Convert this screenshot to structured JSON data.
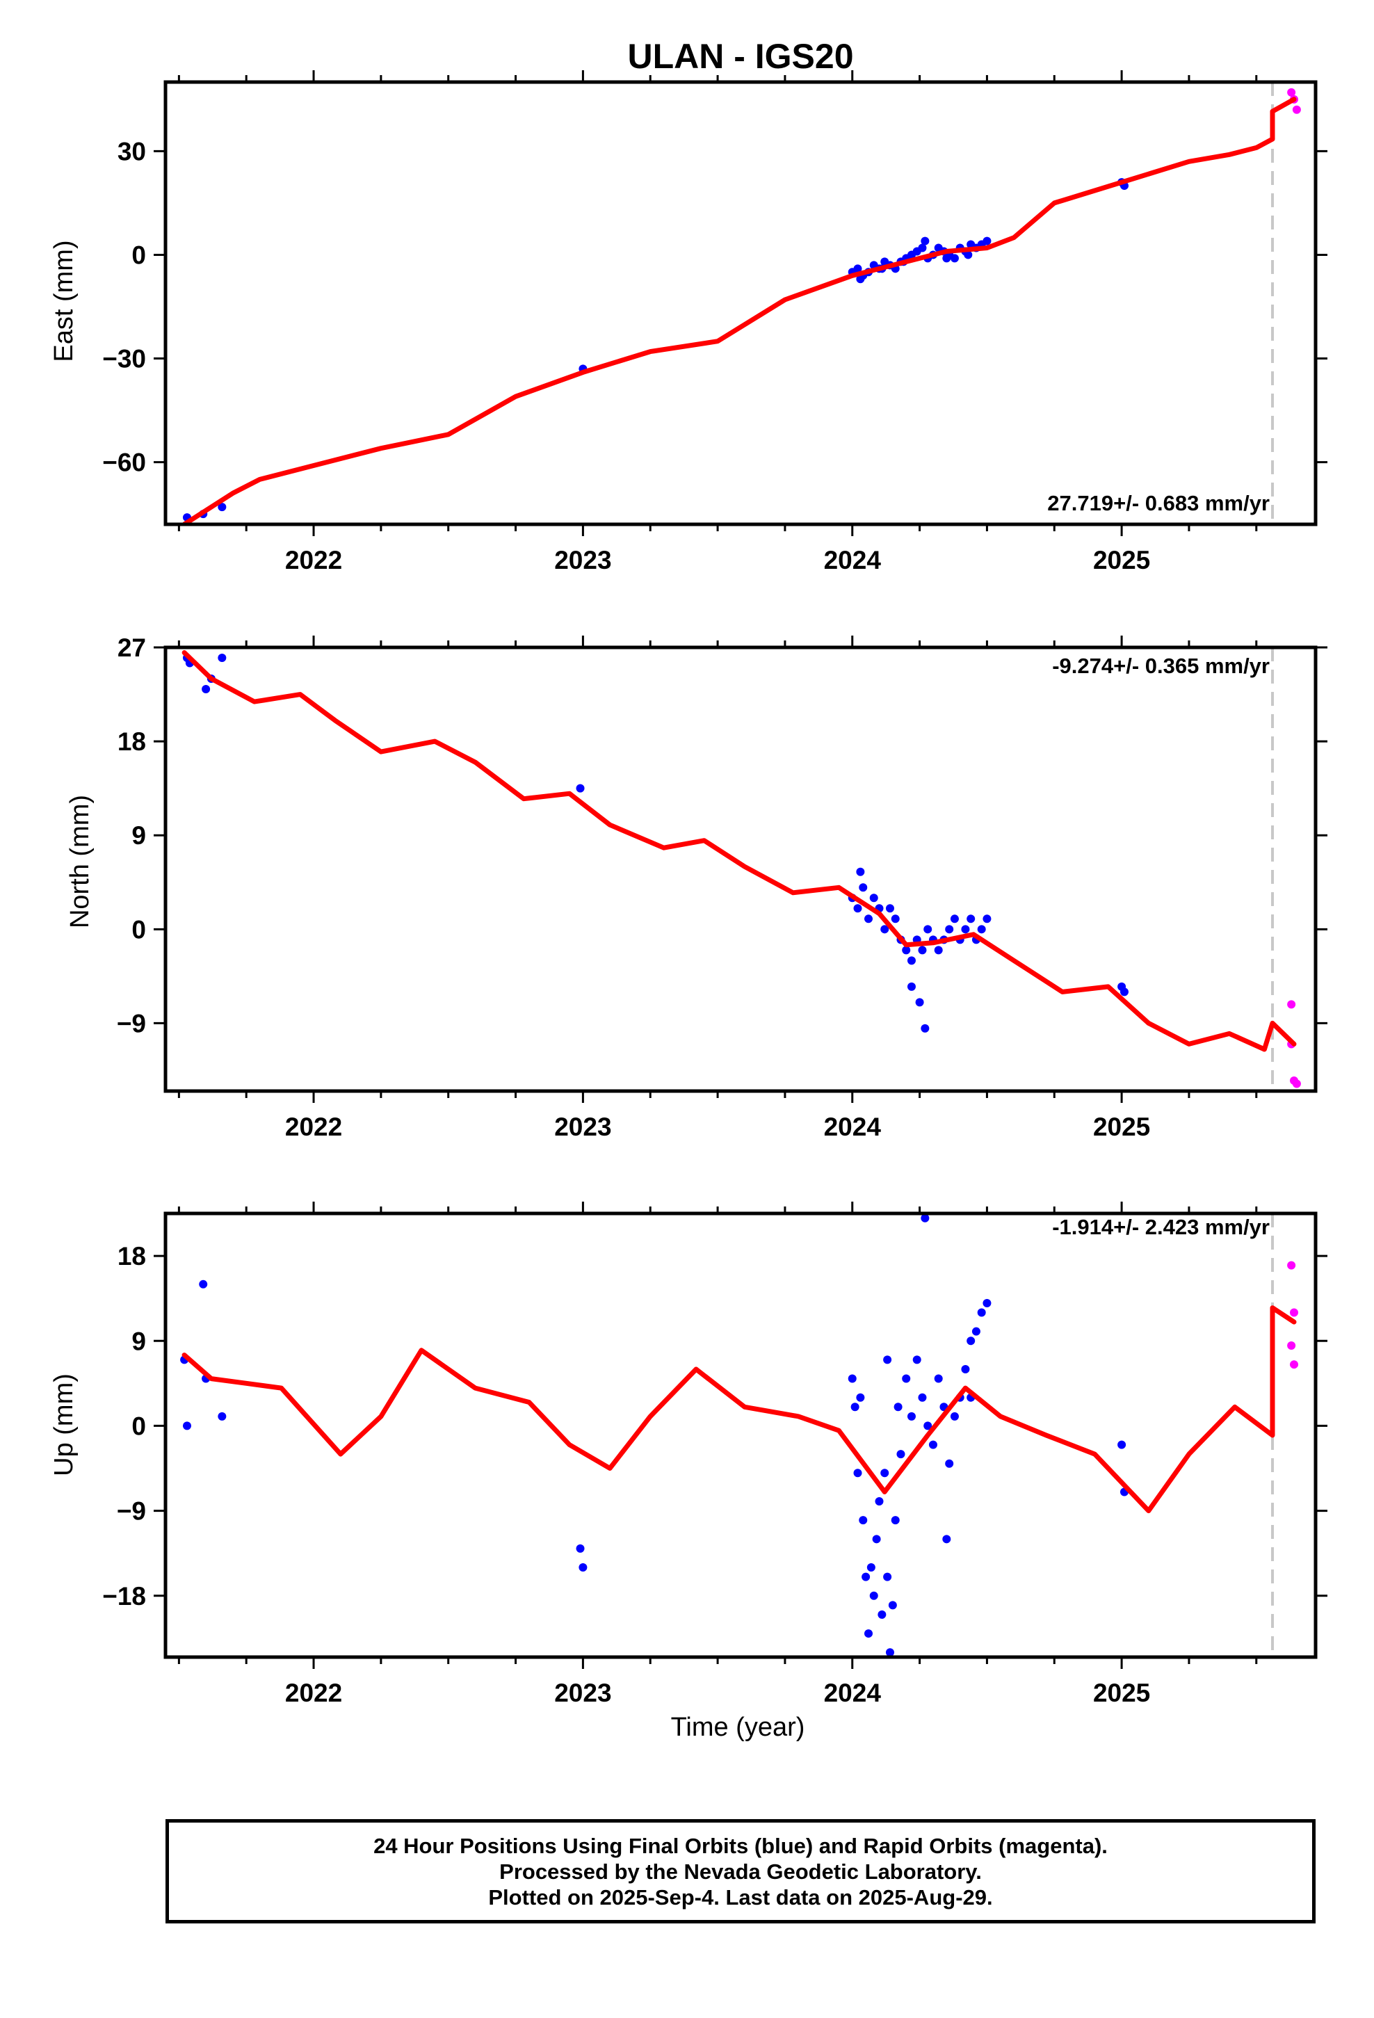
{
  "chart_data": {
    "title": "ULAN - IGS20",
    "xlabel": "Time (year)",
    "xlim": [
      2021.45,
      2025.72
    ],
    "x_ticks": [
      2022,
      2023,
      2024,
      2025
    ],
    "x_ticklabels": [
      "2022",
      "2023",
      "2024",
      "2025"
    ],
    "x_minor_tick_step": 0.25,
    "offset_epoch": 2025.56,
    "colors": {
      "final_orbits": "#0000ff",
      "rapid_orbits": "#ff00ff",
      "model": "#ff0000",
      "offset_line": "#c8c8c8"
    },
    "panels": [
      {
        "type": "scatter",
        "ylabel": "East (mm)",
        "ylim": [
          -78,
          50
        ],
        "y_ticks": [
          -60,
          -30,
          0,
          30
        ],
        "y_ticklabels": [
          "−60",
          "−30",
          "0",
          "30"
        ],
        "rate_text": "27.719+/- 0.683 mm/yr",
        "rate_position": "bottom-right",
        "model_line": {
          "x": [
            2021.52,
            2021.6,
            2021.7,
            2021.8,
            2022.0,
            2022.25,
            2022.5,
            2022.75,
            2023.0,
            2023.25,
            2023.5,
            2023.75,
            2024.0,
            2024.2,
            2024.35,
            2024.5,
            2024.6,
            2024.75,
            2025.0,
            2025.25,
            2025.4,
            2025.5,
            2025.56,
            2025.56,
            2025.64
          ],
          "y": [
            -78,
            -74,
            -69,
            -65,
            -61,
            -56,
            -52,
            -41,
            -34,
            -28,
            -25,
            -13,
            -6,
            -2,
            1,
            2,
            5,
            15,
            21,
            27,
            29,
            31,
            33.5,
            41.5,
            45
          ]
        },
        "final_points": {
          "x": [
            2021.53,
            2021.59,
            2021.66,
            2023.0,
            2024.0,
            2024.02,
            2024.04,
            2024.06,
            2024.08,
            2024.1,
            2024.12,
            2024.14,
            2024.16,
            2024.18,
            2024.2,
            2024.22,
            2024.24,
            2024.26,
            2024.28,
            2024.3,
            2024.32,
            2024.34,
            2024.36,
            2024.38,
            2024.4,
            2024.42,
            2024.44,
            2024.46,
            2024.48,
            2024.5,
            2024.03,
            2024.11,
            2024.19,
            2024.27,
            2024.35,
            2024.43,
            2025.0,
            2025.01
          ],
          "y": [
            -76,
            -75,
            -73,
            -33,
            -5,
            -4,
            -6,
            -5,
            -3,
            -4,
            -2,
            -3,
            -4,
            -2,
            -1,
            0,
            1,
            2,
            -1,
            0,
            2,
            1,
            0,
            -1,
            2,
            1,
            3,
            2,
            3,
            4,
            -7,
            -4,
            -2,
            4,
            -1,
            0,
            21,
            20
          ]
        },
        "rapid_points": {
          "x": [
            2025.63,
            2025.64,
            2025.65
          ],
          "y": [
            47,
            45,
            42
          ]
        }
      },
      {
        "type": "scatter",
        "ylabel": "North (mm)",
        "ylim": [
          -15.5,
          27
        ],
        "y_ticks": [
          -9,
          0,
          9,
          18,
          27
        ],
        "y_ticklabels": [
          "−9",
          "0",
          "9",
          "18",
          "27"
        ],
        "rate_text": "-9.274+/- 0.365 mm/yr",
        "rate_position": "top-right",
        "model_line": {
          "x": [
            2021.52,
            2021.62,
            2021.78,
            2021.95,
            2022.08,
            2022.25,
            2022.45,
            2022.6,
            2022.78,
            2022.95,
            2023.1,
            2023.3,
            2023.45,
            2023.6,
            2023.78,
            2023.95,
            2024.1,
            2024.2,
            2024.3,
            2024.45,
            2024.6,
            2024.78,
            2024.95,
            2025.1,
            2025.25,
            2025.4,
            2025.53,
            2025.56,
            2025.64
          ],
          "y": [
            26.5,
            24,
            21.8,
            22.5,
            20,
            17,
            18,
            16,
            12.5,
            13,
            10,
            7.8,
            8.5,
            6,
            3.5,
            4,
            1.5,
            -1.5,
            -1.3,
            -0.5,
            -3,
            -6,
            -5.5,
            -9,
            -11,
            -10,
            -11.5,
            -9,
            -11
          ]
        },
        "final_points": {
          "x": [
            2021.53,
            2021.54,
            2021.6,
            2021.62,
            2021.66,
            2022.99,
            2024.0,
            2024.02,
            2024.04,
            2024.06,
            2024.08,
            2024.1,
            2024.12,
            2024.14,
            2024.16,
            2024.18,
            2024.2,
            2024.22,
            2024.24,
            2024.26,
            2024.28,
            2024.3,
            2024.32,
            2024.34,
            2024.36,
            2024.38,
            2024.4,
            2024.42,
            2024.44,
            2024.46,
            2024.48,
            2024.5,
            2024.22,
            2024.25,
            2024.27,
            2024.03,
            2025.0,
            2025.01
          ],
          "y": [
            26,
            25.5,
            23,
            24,
            26,
            13.5,
            3,
            2,
            4,
            1,
            3,
            2,
            0,
            2,
            1,
            -1,
            -2,
            -3,
            -1,
            -2,
            0,
            -1,
            -2,
            -1,
            0,
            1,
            -1,
            0,
            1,
            -1,
            0,
            1,
            -5.5,
            -7,
            -9.5,
            5.5,
            -5.5,
            -6
          ]
        },
        "rapid_points": {
          "x": [
            2025.63,
            2025.63,
            2025.64,
            2025.65
          ],
          "y": [
            -7.2,
            -11,
            -14.5,
            -14.8
          ]
        }
      },
      {
        "type": "scatter",
        "ylabel": "Up (mm)",
        "xlabel": "Time (year)",
        "ylim": [
          -24.5,
          22.5
        ],
        "y_ticks": [
          -18,
          -9,
          0,
          9,
          18
        ],
        "y_ticklabels": [
          "−18",
          "−9",
          "0",
          "9",
          "18"
        ],
        "rate_text": "-1.914+/- 2.423 mm/yr",
        "rate_position": "top-right",
        "model_line": {
          "x": [
            2021.52,
            2021.62,
            2021.75,
            2021.88,
            2022.1,
            2022.25,
            2022.4,
            2022.6,
            2022.8,
            2022.95,
            2023.1,
            2023.25,
            2023.42,
            2023.6,
            2023.8,
            2023.95,
            2024.12,
            2024.28,
            2024.42,
            2024.55,
            2024.72,
            2024.9,
            2025.1,
            2025.25,
            2025.42,
            2025.56,
            2025.56,
            2025.64
          ],
          "y": [
            7.5,
            5,
            4.5,
            4,
            -3,
            1,
            8,
            4,
            2.5,
            -2,
            -4.5,
            1,
            6,
            2,
            1,
            -0.5,
            -7,
            -1,
            4,
            1,
            -1,
            -3,
            -9,
            -3,
            2,
            -1,
            12.5,
            11
          ]
        },
        "final_points": {
          "x": [
            2021.52,
            2021.53,
            2021.59,
            2021.6,
            2021.66,
            2022.99,
            2023.0,
            2024.0,
            2024.01,
            2024.02,
            2024.03,
            2024.04,
            2024.05,
            2024.06,
            2024.07,
            2024.08,
            2024.09,
            2024.1,
            2024.11,
            2024.12,
            2024.13,
            2024.14,
            2024.15,
            2024.16,
            2024.17,
            2024.18,
            2024.2,
            2024.22,
            2024.24,
            2024.26,
            2024.28,
            2024.3,
            2024.32,
            2024.34,
            2024.36,
            2024.38,
            2024.4,
            2024.42,
            2024.44,
            2024.46,
            2024.48,
            2024.5,
            2024.27,
            2024.13,
            2024.35,
            2024.44,
            2025.0,
            2025.01
          ],
          "y": [
            7,
            0,
            15,
            5,
            1,
            -13,
            -15,
            5,
            2,
            -5,
            3,
            -10,
            -16,
            -22,
            -15,
            -18,
            -12,
            -8,
            -20,
            -5,
            -16,
            -24,
            -19,
            -10,
            2,
            -3,
            5,
            1,
            7,
            3,
            0,
            -2,
            5,
            2,
            -4,
            1,
            3,
            6,
            9,
            10,
            12,
            13,
            22,
            7,
            -12,
            3,
            -2,
            -7
          ]
        },
        "rapid_points": {
          "x": [
            2025.63,
            2025.64,
            2025.63,
            2025.64
          ],
          "y": [
            17,
            12,
            8.5,
            6.5
          ]
        }
      }
    ]
  },
  "caption": {
    "line1": "24 Hour Positions Using Final Orbits (blue) and Rapid Orbits (magenta).",
    "line2": "Processed by the Nevada Geodetic Laboratory.",
    "line3": "Plotted on 2025-Sep-4. Last data on 2025-Aug-29."
  }
}
